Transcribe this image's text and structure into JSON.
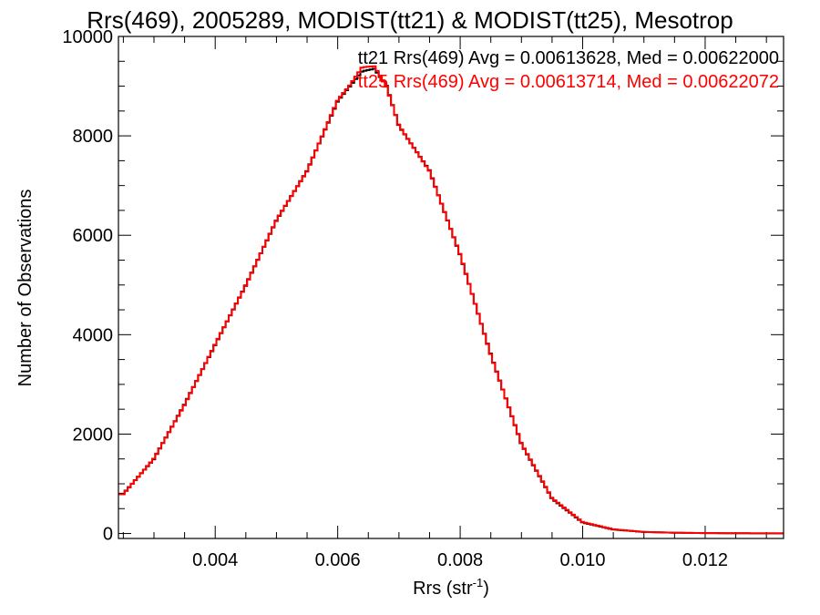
{
  "chart_data": {
    "type": "line",
    "step": true,
    "title": "Rrs(469), 2005289, MODIST(tt21) & MODIST(tt25), Mesotrop",
    "xlabel": "Rrs (str",
    "xlabel_superscript": "-1",
    "xlabel_close": ")",
    "ylabel": "Number of Observations",
    "xlim": [
      0.00242,
      0.01328
    ],
    "ylim": [
      -100,
      10000
    ],
    "xticks": [
      0.004,
      0.006,
      0.008,
      0.01,
      0.012
    ],
    "xtick_labels": [
      "0.004",
      "0.006",
      "0.008",
      "0.010",
      "0.012"
    ],
    "xminor_step": 0.0005,
    "yticks": [
      0,
      2000,
      4000,
      6000,
      8000,
      10000
    ],
    "ytick_labels": [
      "0",
      "2000",
      "4000",
      "6000",
      "8000",
      "10000"
    ],
    "yminor_step": 500,
    "grid": false,
    "legend_position": "top-right",
    "annotations": [
      {
        "text": "tt21 Rrs(469) Avg = 0.00613628, Med = 0.00622000",
        "color": "#000000"
      },
      {
        "text": "tt25 Rrs(469) Avg = 0.00613714, Med = 0.00622072",
        "color": "#ff0000"
      }
    ],
    "series": [
      {
        "color": "#000000",
        "x": [
          0.0025,
          0.003,
          0.0035,
          0.004,
          0.0045,
          0.005,
          0.0055,
          0.006,
          0.0062,
          0.0064,
          0.0066,
          0.0068,
          0.007,
          0.0075,
          0.008,
          0.0085,
          0.009,
          0.0095,
          0.01,
          0.0105,
          0.011,
          0.0115,
          0.012,
          0.0125,
          0.013
        ],
        "y": [
          800,
          1500,
          2600,
          3800,
          5000,
          6300,
          7300,
          8700,
          9000,
          9300,
          9350,
          9000,
          8200,
          7300,
          5600,
          3600,
          1800,
          700,
          220,
          80,
          30,
          15,
          8,
          5,
          3
        ]
      },
      {
        "color": "#ff0000",
        "x": [
          0.0025,
          0.003,
          0.0035,
          0.004,
          0.0045,
          0.005,
          0.0055,
          0.006,
          0.0062,
          0.0064,
          0.0066,
          0.0068,
          0.007,
          0.0075,
          0.008,
          0.0085,
          0.009,
          0.0095,
          0.01,
          0.0105,
          0.011,
          0.0115,
          0.012,
          0.0125,
          0.013
        ],
        "y": [
          790,
          1510,
          2590,
          3810,
          4990,
          6310,
          7290,
          8720,
          9020,
          9380,
          9400,
          8980,
          8210,
          7290,
          5610,
          3590,
          1810,
          710,
          230,
          85,
          32,
          16,
          9,
          5,
          3
        ]
      }
    ]
  }
}
